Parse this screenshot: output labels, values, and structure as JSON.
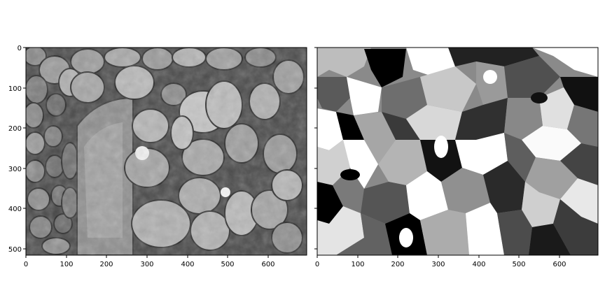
{
  "panels": [
    {
      "name": "original-grayscale-image",
      "content": "photo of rounded cell-like clusters",
      "x_ticks": [
        "0",
        "100",
        "200",
        "300",
        "400",
        "500",
        "600"
      ],
      "y_ticks": [
        "0",
        "100",
        "200",
        "300",
        "400",
        "500"
      ],
      "xlim": [
        0,
        695
      ],
      "ylim": [
        0,
        516
      ]
    },
    {
      "name": "segmentation-label-map",
      "content": "grayscale region segmentation",
      "x_ticks": [
        "0",
        "100",
        "200",
        "300",
        "400",
        "500",
        "600"
      ],
      "y_ticks": [
        "0",
        "100",
        "200",
        "300",
        "400",
        "500"
      ],
      "xlim": [
        0,
        695
      ],
      "ylim": [
        0,
        516
      ]
    }
  ]
}
